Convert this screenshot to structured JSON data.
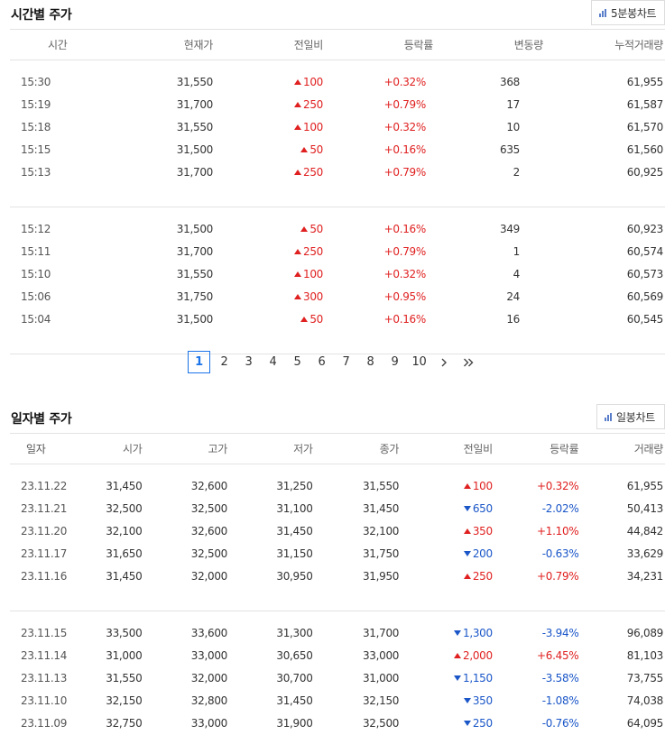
{
  "hourly": {
    "title": "시간별 주가",
    "chart_button": "5분봉차트",
    "columns": [
      "시간",
      "현재가",
      "전일비",
      "등락률",
      "변동량",
      "누적거래량"
    ],
    "groups": [
      [
        {
          "time": "15:30",
          "price": "31,550",
          "dir": "up",
          "change": "100",
          "rate": "+0.32%",
          "vol": "368",
          "cum": "61,955"
        },
        {
          "time": "15:19",
          "price": "31,700",
          "dir": "up",
          "change": "250",
          "rate": "+0.79%",
          "vol": "17",
          "cum": "61,587"
        },
        {
          "time": "15:18",
          "price": "31,550",
          "dir": "up",
          "change": "100",
          "rate": "+0.32%",
          "vol": "10",
          "cum": "61,570"
        },
        {
          "time": "15:15",
          "price": "31,500",
          "dir": "up",
          "change": "50",
          "rate": "+0.16%",
          "vol": "635",
          "cum": "61,560"
        },
        {
          "time": "15:13",
          "price": "31,700",
          "dir": "up",
          "change": "250",
          "rate": "+0.79%",
          "vol": "2",
          "cum": "60,925"
        }
      ],
      [
        {
          "time": "15:12",
          "price": "31,500",
          "dir": "up",
          "change": "50",
          "rate": "+0.16%",
          "vol": "349",
          "cum": "60,923"
        },
        {
          "time": "15:11",
          "price": "31,700",
          "dir": "up",
          "change": "250",
          "rate": "+0.79%",
          "vol": "1",
          "cum": "60,574"
        },
        {
          "time": "15:10",
          "price": "31,550",
          "dir": "up",
          "change": "100",
          "rate": "+0.32%",
          "vol": "4",
          "cum": "60,573"
        },
        {
          "time": "15:06",
          "price": "31,750",
          "dir": "up",
          "change": "300",
          "rate": "+0.95%",
          "vol": "24",
          "cum": "60,569"
        },
        {
          "time": "15:04",
          "price": "31,500",
          "dir": "up",
          "change": "50",
          "rate": "+0.16%",
          "vol": "16",
          "cum": "60,545"
        }
      ]
    ]
  },
  "pagination": {
    "pages": [
      "1",
      "2",
      "3",
      "4",
      "5",
      "6",
      "7",
      "8",
      "9",
      "10"
    ],
    "current": "1"
  },
  "daily": {
    "title": "일자별 주가",
    "chart_button": "일봉차트",
    "columns": [
      "일자",
      "시가",
      "고가",
      "저가",
      "종가",
      "전일비",
      "등락률",
      "거래량"
    ],
    "groups": [
      [
        {
          "date": "23.11.22",
          "open": "31,450",
          "high": "32,600",
          "low": "31,250",
          "close": "31,550",
          "dir": "up",
          "change": "100",
          "rate": "+0.32%",
          "vol": "61,955"
        },
        {
          "date": "23.11.21",
          "open": "32,500",
          "high": "32,500",
          "low": "31,100",
          "close": "31,450",
          "dir": "down",
          "change": "650",
          "rate": "-2.02%",
          "vol": "50,413"
        },
        {
          "date": "23.11.20",
          "open": "32,100",
          "high": "32,600",
          "low": "31,450",
          "close": "32,100",
          "dir": "up",
          "change": "350",
          "rate": "+1.10%",
          "vol": "44,842"
        },
        {
          "date": "23.11.17",
          "open": "31,650",
          "high": "32,500",
          "low": "31,150",
          "close": "31,750",
          "dir": "down",
          "change": "200",
          "rate": "-0.63%",
          "vol": "33,629"
        },
        {
          "date": "23.11.16",
          "open": "31,450",
          "high": "32,000",
          "low": "30,950",
          "close": "31,950",
          "dir": "up",
          "change": "250",
          "rate": "+0.79%",
          "vol": "34,231"
        }
      ],
      [
        {
          "date": "23.11.15",
          "open": "33,500",
          "high": "33,600",
          "low": "31,300",
          "close": "31,700",
          "dir": "down",
          "change": "1,300",
          "rate": "-3.94%",
          "vol": "96,089"
        },
        {
          "date": "23.11.14",
          "open": "31,000",
          "high": "33,000",
          "low": "30,650",
          "close": "33,000",
          "dir": "up",
          "change": "2,000",
          "rate": "+6.45%",
          "vol": "81,103"
        },
        {
          "date": "23.11.13",
          "open": "31,550",
          "high": "32,000",
          "low": "30,700",
          "close": "31,000",
          "dir": "down",
          "change": "1,150",
          "rate": "-3.58%",
          "vol": "73,755"
        },
        {
          "date": "23.11.10",
          "open": "32,150",
          "high": "32,800",
          "low": "31,450",
          "close": "32,150",
          "dir": "down",
          "change": "350",
          "rate": "-1.08%",
          "vol": "74,038"
        },
        {
          "date": "23.11.09",
          "open": "32,750",
          "high": "33,000",
          "low": "31,900",
          "close": "32,500",
          "dir": "down",
          "change": "250",
          "rate": "-0.76%",
          "vol": "64,095"
        }
      ]
    ]
  },
  "colors": {
    "up": "#e02020",
    "down": "#1a56c8",
    "accent": "#1a73e8"
  },
  "icons": {
    "chart_button": "bar-chart-icon",
    "next": "chevron-right-icon",
    "last": "double-chevron-right-icon"
  }
}
